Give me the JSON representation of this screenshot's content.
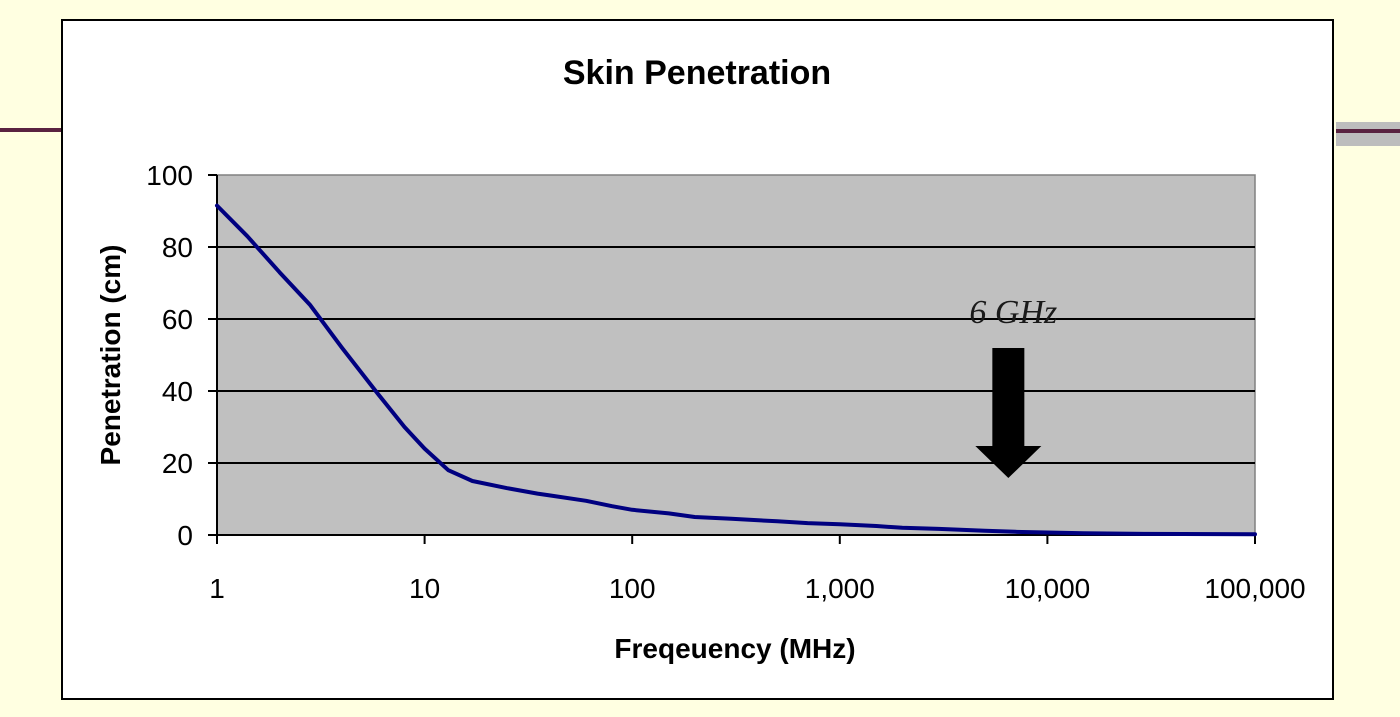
{
  "chart_data": {
    "type": "line",
    "title": "Skin Penetration",
    "xlabel": "Freqeuency (MHz)",
    "ylabel": "Penetration (cm)",
    "x_scale": "log",
    "xlim": [
      1,
      100000
    ],
    "ylim": [
      0,
      100
    ],
    "x_ticks": [
      1,
      10,
      100,
      1000,
      10000,
      100000
    ],
    "x_tick_labels": [
      "1",
      "10",
      "100",
      "1,000",
      "10,000",
      "100,000"
    ],
    "y_ticks": [
      0,
      20,
      40,
      60,
      80,
      100
    ],
    "y_tick_labels": [
      "0",
      "20",
      "40",
      "60",
      "80",
      "100"
    ],
    "grid": "horizontal",
    "plot_background": "#C0C0C0",
    "series": [
      {
        "color": "#000080",
        "x": [
          1,
          1.4,
          2,
          2.8,
          4,
          6,
          8,
          10,
          13,
          17,
          25,
          35,
          40,
          60,
          80,
          100,
          150,
          200,
          300,
          500,
          700,
          1000,
          1500,
          2000,
          3000,
          5000,
          7000,
          10000,
          15000,
          30000,
          100000
        ],
        "y": [
          91.5,
          83,
          73,
          64,
          52,
          39,
          30,
          24,
          18,
          15,
          13,
          11.5,
          11,
          9.5,
          8,
          7,
          6,
          5,
          4.5,
          3.8,
          3.3,
          3,
          2.5,
          2,
          1.7,
          1.2,
          0.9,
          0.7,
          0.5,
          0.3,
          0.2
        ]
      }
    ],
    "annotations": [
      {
        "text": "6 GHz",
        "x": 6000,
        "arrow": "down"
      }
    ]
  }
}
